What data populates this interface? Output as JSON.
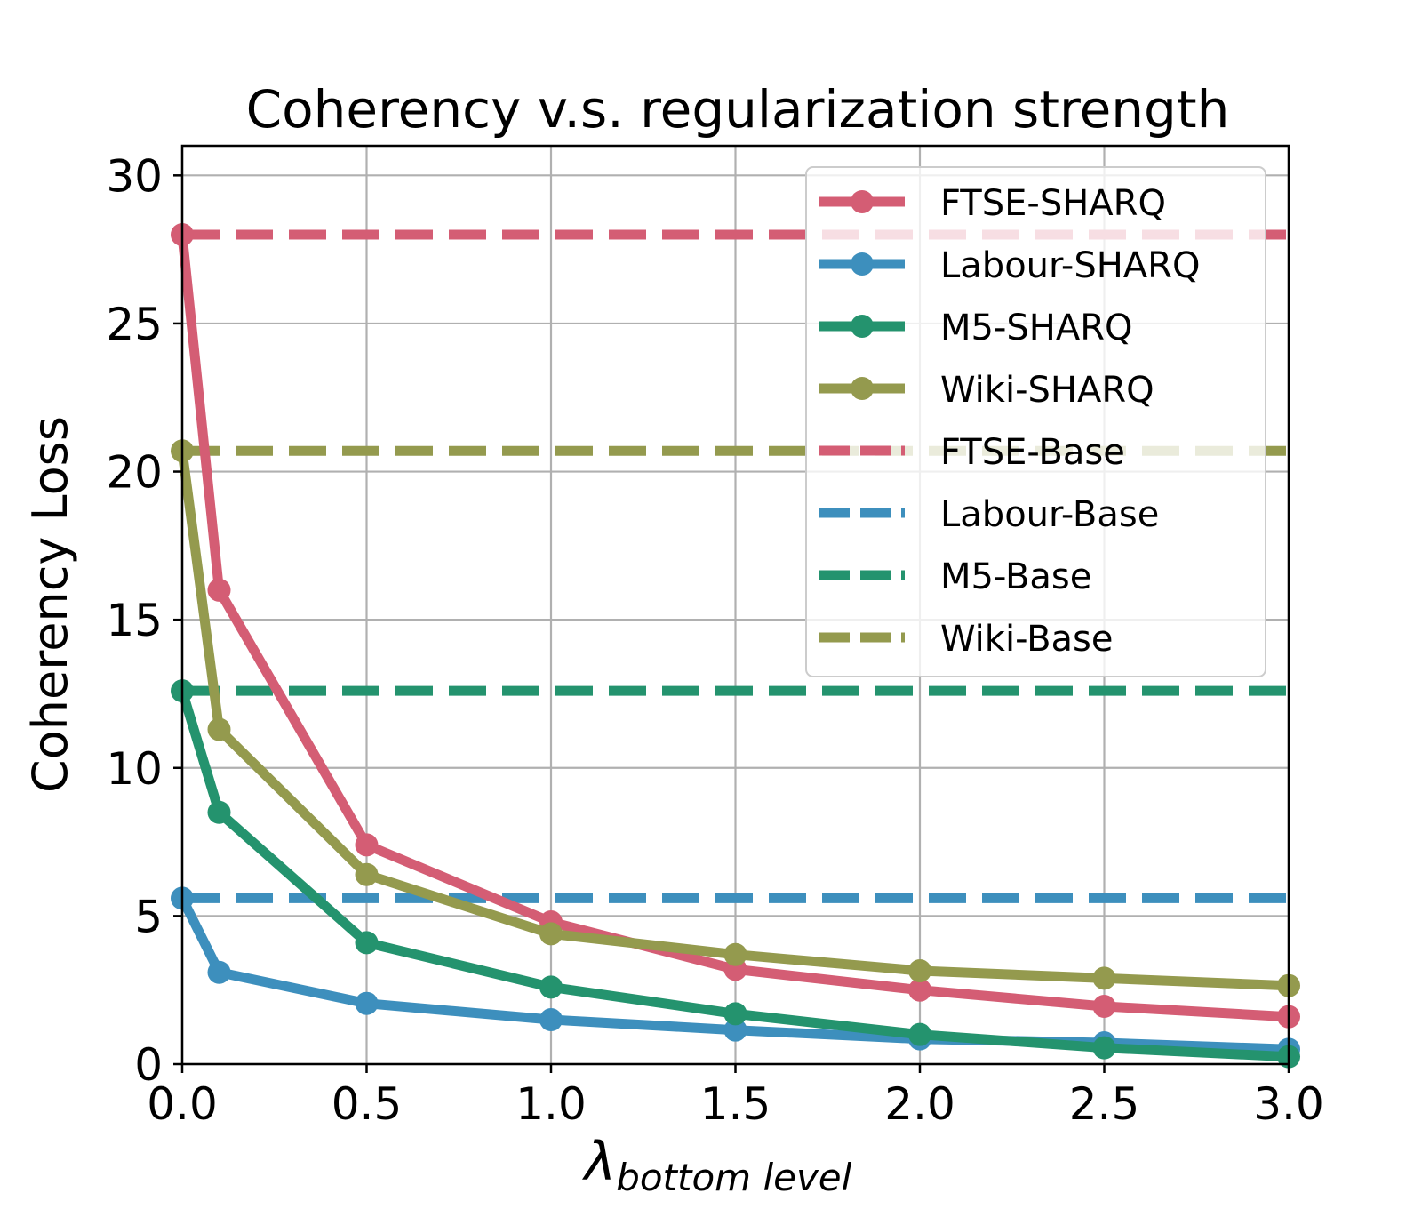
{
  "chart_data": {
    "type": "line",
    "title": "Coherency v.s. regularization strength",
    "xlabel": {
      "main": "λ",
      "sub": "bottom level"
    },
    "ylabel": "Coherency Loss",
    "xlim": [
      0,
      3
    ],
    "ylim": [
      0,
      31
    ],
    "xticks": [
      0.0,
      0.5,
      1.0,
      1.5,
      2.0,
      2.5,
      3.0
    ],
    "xtick_labels": [
      "0.0",
      "0.5",
      "1.0",
      "1.5",
      "2.0",
      "2.5",
      "3.0"
    ],
    "yticks": [
      0,
      5,
      10,
      15,
      20,
      25,
      30
    ],
    "ytick_labels": [
      "0",
      "5",
      "10",
      "15",
      "20",
      "25",
      "30"
    ],
    "grid": true,
    "legend_position": "top-right",
    "x": [
      0,
      0.1,
      0.5,
      1.0,
      1.5,
      2.0,
      2.5,
      3.0
    ],
    "series": [
      {
        "name": "FTSE-SHARQ",
        "style": "solid-marker",
        "color": "#d45d74",
        "values": [
          28.0,
          16.0,
          7.4,
          4.8,
          3.2,
          2.5,
          1.95,
          1.6
        ]
      },
      {
        "name": "Labour-SHARQ",
        "style": "solid-marker",
        "color": "#3d8fbd",
        "values": [
          5.6,
          3.1,
          2.05,
          1.5,
          1.15,
          0.85,
          0.72,
          0.5
        ]
      },
      {
        "name": "M5-SHARQ",
        "style": "solid-marker",
        "color": "#24936e",
        "values": [
          12.6,
          8.5,
          4.1,
          2.6,
          1.7,
          1.0,
          0.55,
          0.25
        ]
      },
      {
        "name": "Wiki-SHARQ",
        "style": "solid-marker",
        "color": "#949a4e",
        "values": [
          20.7,
          11.3,
          6.4,
          4.4,
          3.7,
          3.15,
          2.9,
          2.65
        ]
      },
      {
        "name": "FTSE-Base",
        "style": "dashed",
        "color": "#d45d74",
        "value": 28.0
      },
      {
        "name": "Labour-Base",
        "style": "dashed",
        "color": "#3d8fbd",
        "value": 5.6
      },
      {
        "name": "M5-Base",
        "style": "dashed",
        "color": "#24936e",
        "value": 12.6
      },
      {
        "name": "Wiki-Base",
        "style": "dashed",
        "color": "#949a4e",
        "value": 20.7
      }
    ]
  }
}
